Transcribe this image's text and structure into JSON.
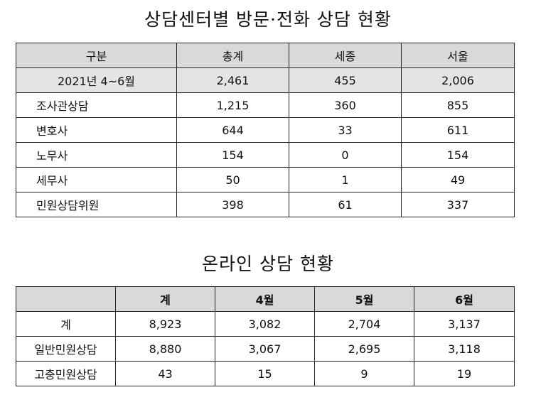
{
  "table1": {
    "title": "상담센터별 방문·전화 상담 현황",
    "headers": [
      "구분",
      "총계",
      "세종",
      "서울"
    ],
    "rows": [
      [
        "2021년 4~6월",
        "2,461",
        "455",
        "2,006"
      ],
      [
        "조사관상담",
        "1,215",
        "360",
        "855"
      ],
      [
        "변호사",
        "644",
        "33",
        "611"
      ],
      [
        "노무사",
        "154",
        "0",
        "154"
      ],
      [
        "세무사",
        "50",
        "1",
        "49"
      ],
      [
        "민원상담위원",
        "398",
        "61",
        "337"
      ]
    ]
  },
  "table2": {
    "title": "온라인 상담 현황",
    "headers": [
      "",
      "계",
      "4월",
      "5월",
      "6월"
    ],
    "rows": [
      [
        "계",
        "8,923",
        "3,082",
        "2,704",
        "3,137"
      ],
      [
        "일반민원상담",
        "8,880",
        "3,067",
        "2,695",
        "3,118"
      ],
      [
        "고충민원상담",
        "43",
        "15",
        "9",
        "19"
      ]
    ]
  }
}
